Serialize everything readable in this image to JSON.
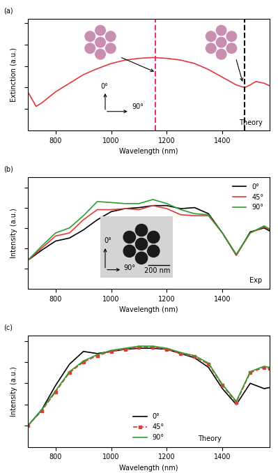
{
  "chart_data": [
    {
      "type": "line",
      "xlabel": "Wavelength (nm)",
      "ylabel": "Extinction (a.u.)",
      "annotations": [
        "(a)",
        "Theory",
        "0°",
        "90°"
      ],
      "xlim": [
        700,
        1570
      ],
      "xticks": [
        800,
        1000,
        1200,
        1400
      ],
      "ylim": [
        0,
        1.3
      ],
      "yticks": [
        0.25,
        0.5,
        0.75,
        1.0,
        1.25
      ],
      "tick_labels": "x",
      "x": [
        700,
        730,
        750,
        800,
        850,
        900,
        950,
        1000,
        1050,
        1100,
        1150,
        1200,
        1250,
        1300,
        1350,
        1400,
        1450,
        1480,
        1500,
        1520,
        1550,
        1570
      ],
      "series": [
        {
          "name": null,
          "color": "#e03a3a",
          "line_style": "solid",
          "marker": "none",
          "values": [
            0.45,
            0.28,
            0.32,
            0.45,
            0.55,
            0.65,
            0.72,
            0.78,
            0.82,
            0.84,
            0.85,
            0.84,
            0.82,
            0.78,
            0.71,
            0.62,
            0.53,
            0.5,
            0.53,
            0.57,
            0.55,
            0.52
          ]
        }
      ],
      "vlines": [
        {
          "x": 1160,
          "color": "#e8336b",
          "line_style": "dashed"
        },
        {
          "x": 1480,
          "color": "#000000",
          "line_style": "dashed"
        }
      ]
    },
    {
      "type": "line",
      "xlabel": "Wavelength (nm)",
      "ylabel": "Intensity (a.u.)",
      "annotations": [
        "(b)",
        "Exp",
        "0°",
        "90°",
        "200 nm"
      ],
      "xlim": [
        700,
        1570
      ],
      "xticks": [
        800,
        1000,
        1200,
        1400
      ],
      "ylim": [
        0,
        1.1
      ],
      "yticks": [
        0.2,
        0.4,
        0.6,
        0.8,
        1.0
      ],
      "tick_labels": "x",
      "legend": "upper right",
      "x": [
        700,
        750,
        800,
        850,
        900,
        950,
        1000,
        1050,
        1100,
        1150,
        1200,
        1250,
        1300,
        1350,
        1400,
        1450,
        1500,
        1550,
        1570
      ],
      "series": [
        {
          "name": "0°",
          "color": "#000000",
          "line_style": "solid",
          "marker": "none",
          "values": [
            0.28,
            0.38,
            0.47,
            0.5,
            0.58,
            0.68,
            0.76,
            0.79,
            0.8,
            0.82,
            0.82,
            0.79,
            0.8,
            0.74,
            0.55,
            0.33,
            0.56,
            0.6,
            0.57
          ]
        },
        {
          "name": "45°",
          "color": "#e03a3a",
          "line_style": "solid",
          "marker": "none",
          "values": [
            0.28,
            0.4,
            0.52,
            0.55,
            0.68,
            0.78,
            0.78,
            0.79,
            0.78,
            0.82,
            0.79,
            0.73,
            0.72,
            0.72,
            0.55,
            0.33,
            0.55,
            0.61,
            0.58
          ]
        },
        {
          "name": "90°",
          "color": "#2ca02c",
          "line_style": "solid",
          "marker": "none",
          "values": [
            0.28,
            0.42,
            0.55,
            0.6,
            0.72,
            0.86,
            0.85,
            0.84,
            0.84,
            0.88,
            0.84,
            0.78,
            0.74,
            0.73,
            0.55,
            0.34,
            0.55,
            0.62,
            0.59
          ]
        }
      ]
    },
    {
      "type": "line",
      "xlabel": "Wavelength (nm)",
      "ylabel": "Intensity (a.u.)",
      "annotations": [
        "(c)",
        "Theory"
      ],
      "xlim": [
        700,
        1570
      ],
      "xticks": [
        800,
        1000,
        1200,
        1400
      ],
      "ylim": [
        0,
        1.05
      ],
      "yticks": [
        0.2,
        0.4,
        0.6,
        0.8,
        1.0
      ],
      "tick_labels": "x",
      "legend": "lower center",
      "x": [
        700,
        750,
        800,
        850,
        900,
        950,
        1000,
        1050,
        1100,
        1150,
        1200,
        1250,
        1300,
        1350,
        1400,
        1450,
        1500,
        1550,
        1570
      ],
      "series": [
        {
          "name": "0°",
          "color": "#000000",
          "line_style": "solid",
          "marker": "none",
          "values": [
            0.2,
            0.35,
            0.58,
            0.78,
            0.9,
            0.88,
            0.9,
            0.92,
            0.93,
            0.93,
            0.92,
            0.88,
            0.84,
            0.75,
            0.55,
            0.4,
            0.6,
            0.55,
            0.56
          ]
        },
        {
          "name": "45°",
          "color": "#e03a3a",
          "line_style": "dashed",
          "marker": "square",
          "values": [
            0.2,
            0.34,
            0.52,
            0.7,
            0.8,
            0.86,
            0.9,
            0.92,
            0.94,
            0.94,
            0.92,
            0.88,
            0.85,
            0.78,
            0.58,
            0.42,
            0.7,
            0.75,
            0.74
          ]
        },
        {
          "name": "90°",
          "color": "#2ca02c",
          "line_style": "solid",
          "marker": "none",
          "values": [
            0.2,
            0.35,
            0.53,
            0.71,
            0.81,
            0.87,
            0.91,
            0.93,
            0.95,
            0.95,
            0.93,
            0.89,
            0.86,
            0.79,
            0.59,
            0.43,
            0.71,
            0.76,
            0.75
          ]
        }
      ]
    }
  ]
}
